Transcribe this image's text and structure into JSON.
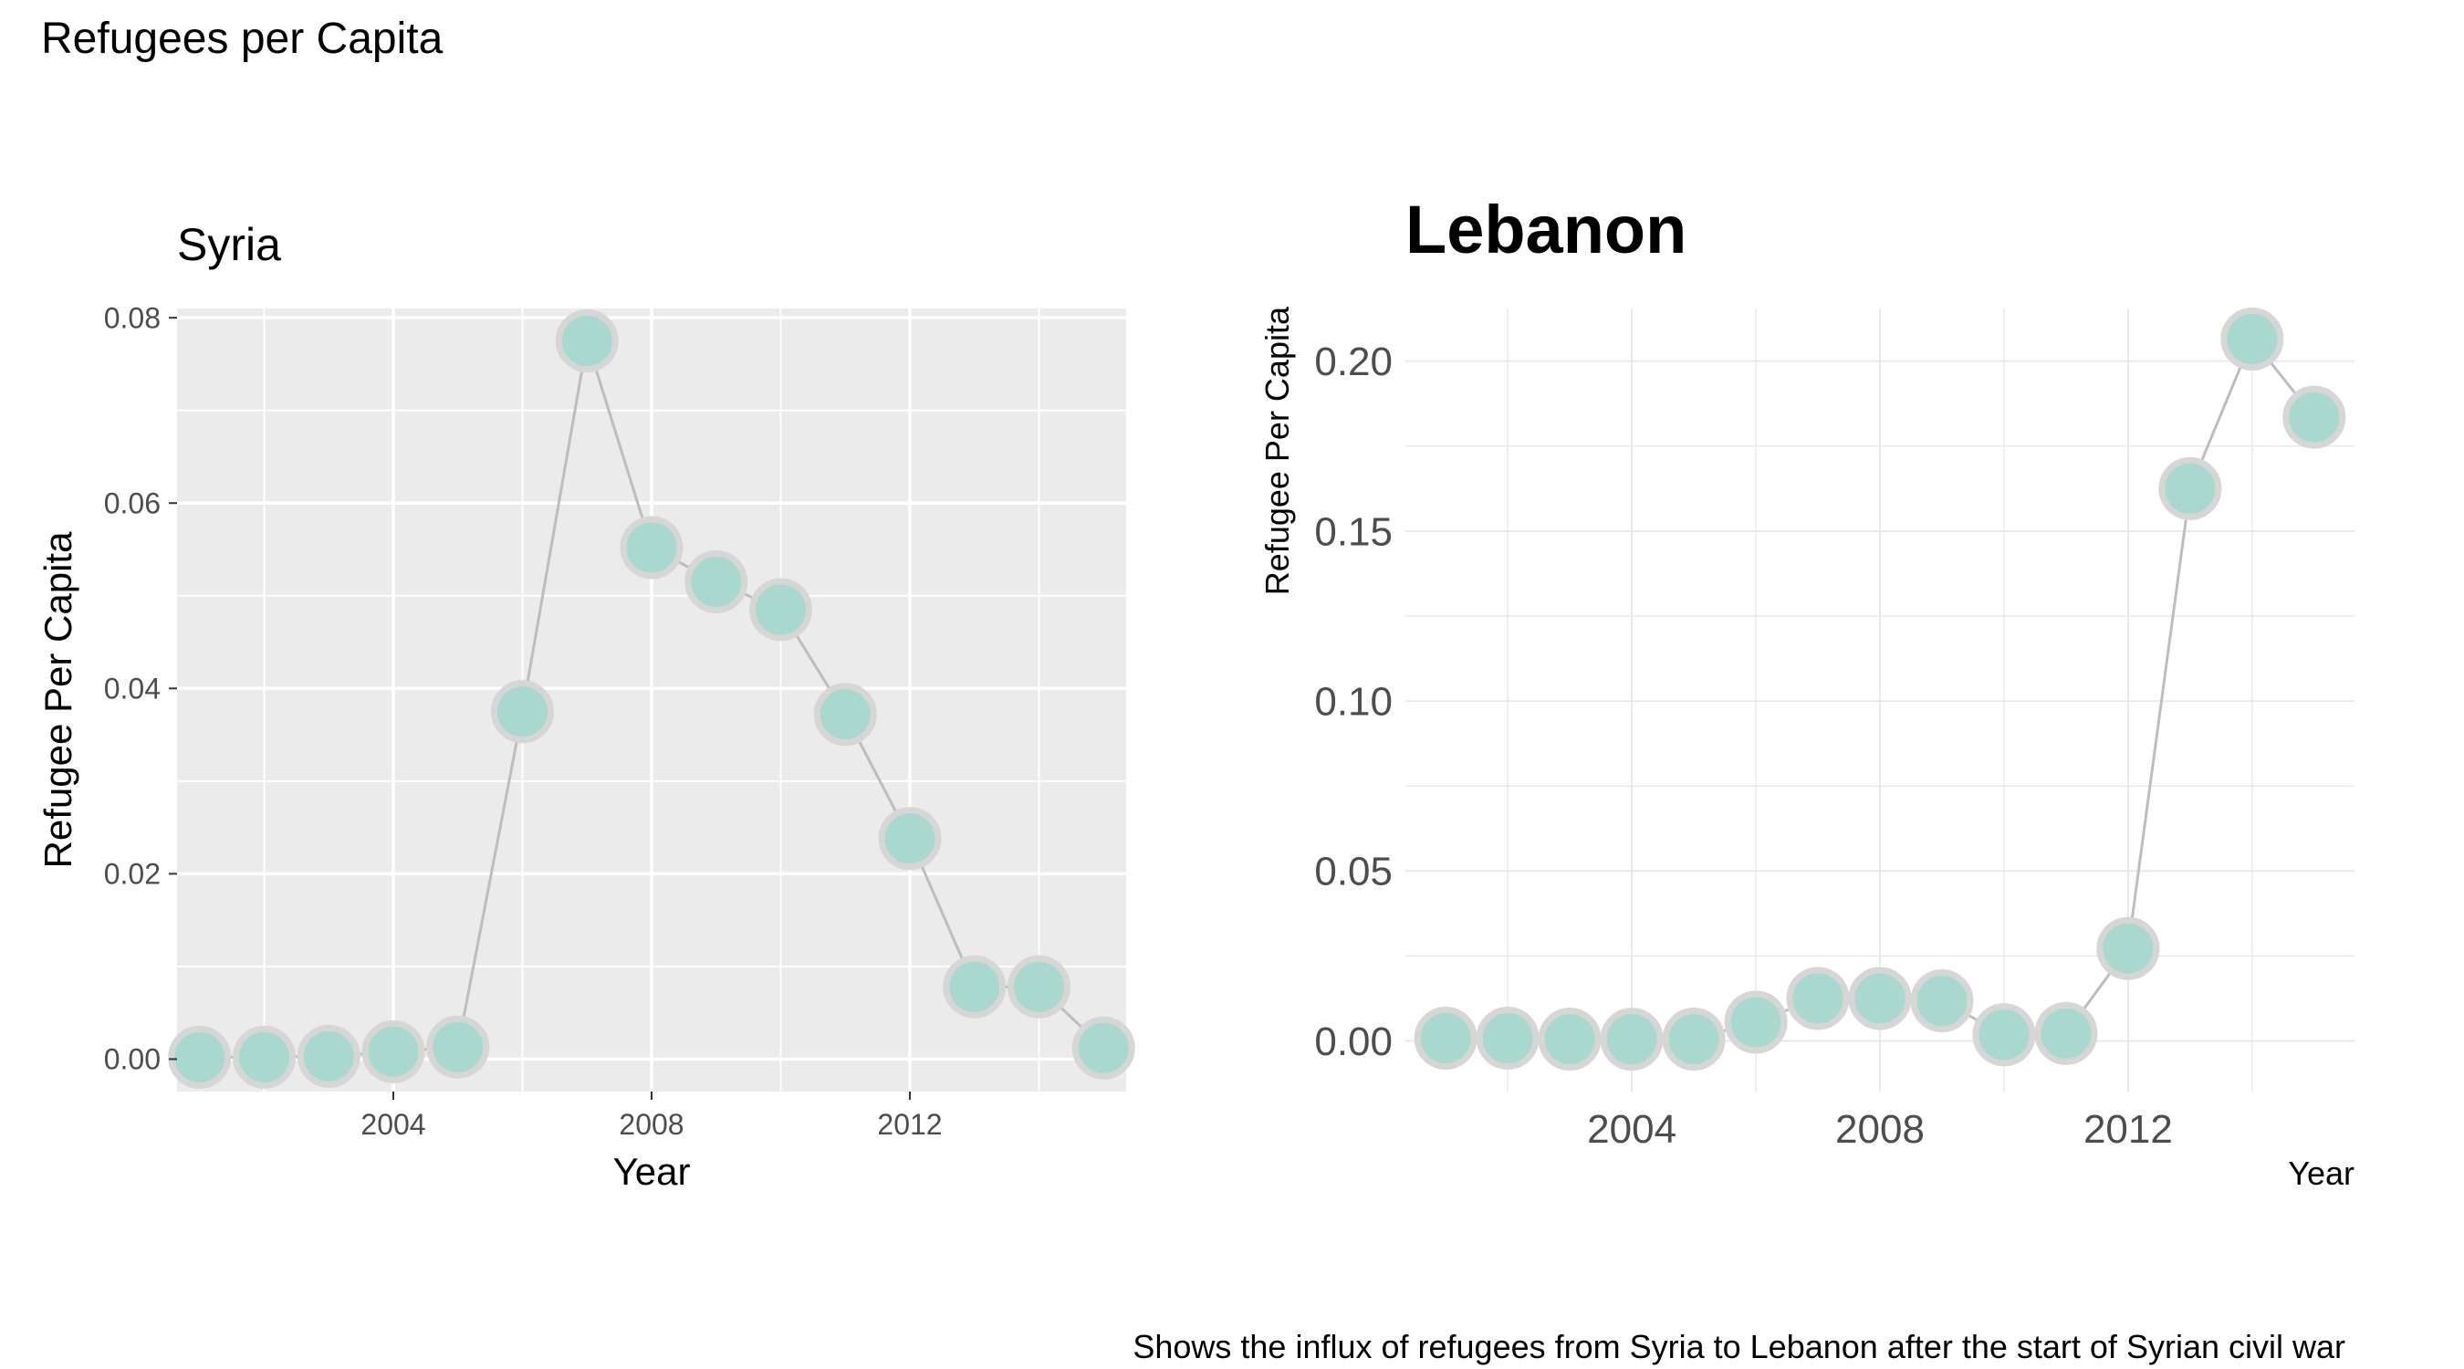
{
  "figure": {
    "title": "Refugees per Capita",
    "caption": "Shows the influx of refugees from Syria to Lebanon after the start of Syrian civil war"
  },
  "colors": {
    "point_fill": "#a9d8ce",
    "point_stroke": "#d6d6d6",
    "line": "#bdbdbd",
    "panel_gray": "#ebebeb",
    "grid_white": "#ffffff",
    "grid_light": "#e4e4e4",
    "tick_text": "#4d4d4d",
    "text": "#000000"
  },
  "chart_data": [
    {
      "type": "line",
      "title": "Syria",
      "xlabel": "Year",
      "ylabel": "Refugee Per Capita",
      "theme": "gray",
      "grid": true,
      "legend": "none",
      "xlim": [
        2000.65,
        2015.35
      ],
      "ylim": [
        -0.0035,
        0.081
      ],
      "x_ticks": [
        2004,
        2008,
        2012
      ],
      "x_tick_labels": [
        "2004",
        "2008",
        "2012"
      ],
      "y_ticks": [
        0,
        0.02,
        0.04,
        0.06,
        0.08
      ],
      "y_tick_labels": [
        "0.00",
        "0.02",
        "0.04",
        "0.06",
        "0.08"
      ],
      "x": [
        2001,
        2002,
        2003,
        2004,
        2005,
        2006,
        2007,
        2008,
        2009,
        2010,
        2011,
        2012,
        2013,
        2014,
        2015
      ],
      "values": [
        0.0002,
        0.0002,
        0.0003,
        0.0008,
        0.0013,
        0.0375,
        0.0775,
        0.0552,
        0.0515,
        0.0485,
        0.0372,
        0.0238,
        0.0078,
        0.0078,
        0.0012
      ]
    },
    {
      "type": "line",
      "title": "Lebanon",
      "xlabel": "Year",
      "ylabel": "Refugee Per Capita",
      "theme": "minimal",
      "grid": true,
      "legend": "none",
      "xlim": [
        2000.35,
        2015.65
      ],
      "ylim": [
        -0.0149,
        0.2155
      ],
      "x_ticks": [
        2004,
        2008,
        2012
      ],
      "x_tick_labels": [
        "2004",
        "2008",
        "2012"
      ],
      "y_ticks": [
        0,
        0.05,
        0.1,
        0.15,
        0.2
      ],
      "y_tick_labels": [
        "0.00",
        "0.05",
        "0.10",
        "0.15",
        "0.20"
      ],
      "x": [
        2001,
        2002,
        2003,
        2004,
        2005,
        2006,
        2007,
        2008,
        2009,
        2010,
        2011,
        2012,
        2013,
        2014,
        2015
      ],
      "values": [
        0.0008,
        0.0008,
        0.0005,
        0.0005,
        0.0005,
        0.0055,
        0.0125,
        0.0125,
        0.0118,
        0.0018,
        0.0022,
        0.0272,
        0.1625,
        0.2065,
        0.1835
      ]
    }
  ]
}
